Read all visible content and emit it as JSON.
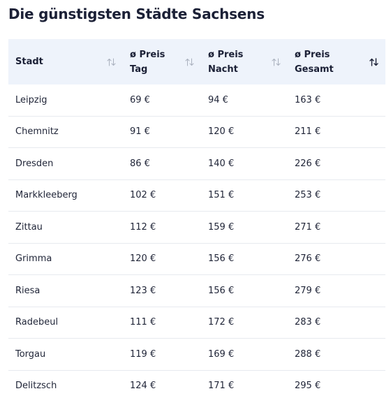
{
  "title": "Die günstigsten Städte Sachsens",
  "columns": [
    {
      "line1": "Stadt",
      "line2": "",
      "sort": "neutral"
    },
    {
      "line1": "ø Preis",
      "line2": "Tag",
      "sort": "neutral"
    },
    {
      "line1": "ø Preis",
      "line2": "Nacht",
      "sort": "neutral"
    },
    {
      "line1": "ø Preis Gesamt",
      "line2": "",
      "sort": "ascending"
    }
  ],
  "rows": [
    {
      "city": "Leipzig",
      "day": "69 €",
      "night": "94 €",
      "total": "163 €"
    },
    {
      "city": "Chemnitz",
      "day": "91 €",
      "night": "120 €",
      "total": "211 €"
    },
    {
      "city": "Dresden",
      "day": "86 €",
      "night": "140 €",
      "total": "226 €"
    },
    {
      "city": "Markkleeberg",
      "day": "102 €",
      "night": "151 €",
      "total": "253 €"
    },
    {
      "city": "Zittau",
      "day": "112 €",
      "night": "159 €",
      "total": "271 €"
    },
    {
      "city": "Grimma",
      "day": "120 €",
      "night": "156 €",
      "total": "276 €"
    },
    {
      "city": "Riesa",
      "day": "123 €",
      "night": "156 €",
      "total": "279 €"
    },
    {
      "city": "Radebeul",
      "day": "111 €",
      "night": "172 €",
      "total": "283 €"
    },
    {
      "city": "Torgau",
      "day": "119 €",
      "night": "169 €",
      "total": "288 €"
    },
    {
      "city": "Delitzsch",
      "day": "124 €",
      "night": "171 €",
      "total": "295 €"
    }
  ],
  "colors": {
    "header_bg": "#eef3fb",
    "text": "#1f2437",
    "divider": "#e7eaef",
    "sort_inactive": "#a9b0bd",
    "sort_active": "#1b2036"
  }
}
